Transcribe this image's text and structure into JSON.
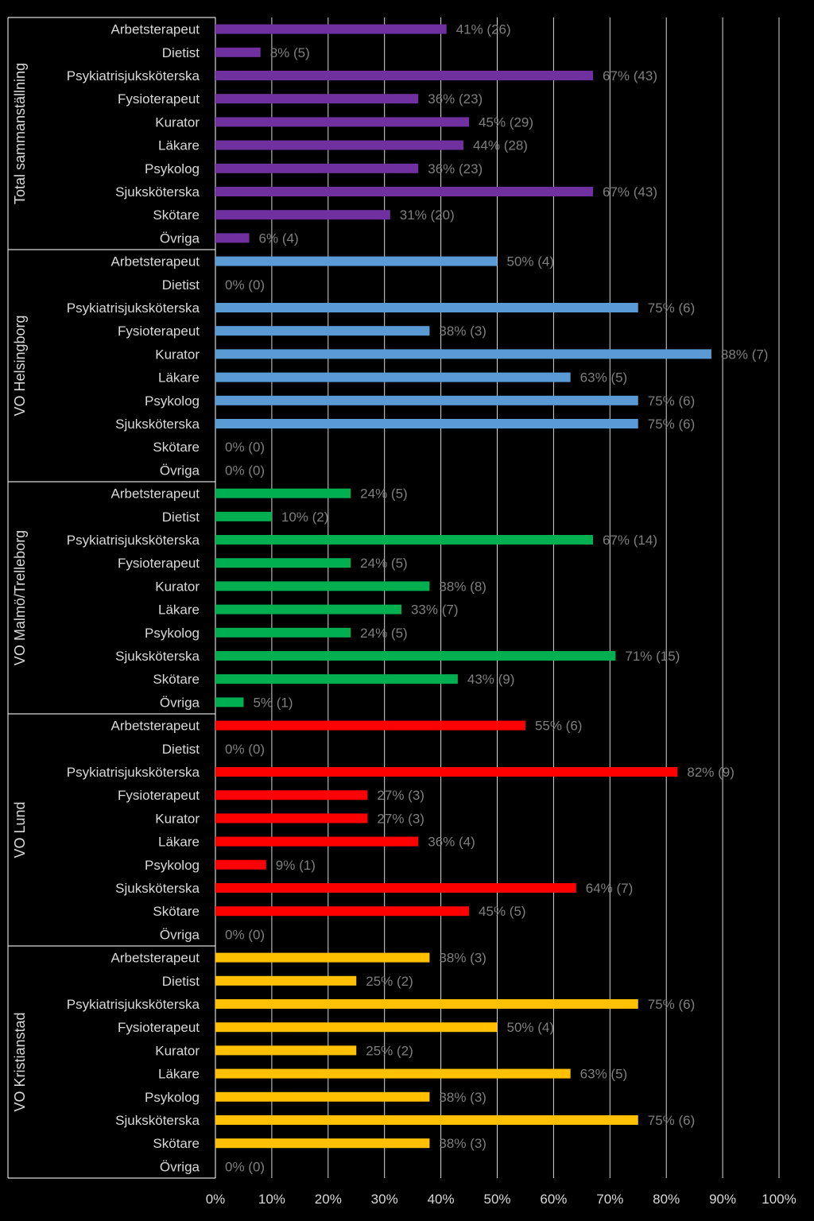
{
  "chart_data": {
    "type": "bar",
    "orientation": "horizontal",
    "xlim": [
      0,
      100
    ],
    "x_ticks": [
      "0%",
      "10%",
      "20%",
      "30%",
      "40%",
      "50%",
      "60%",
      "70%",
      "80%",
      "90%",
      "100%"
    ],
    "grid": true,
    "categories": [
      "Arbetsterapeut",
      "Dietist",
      "Psykiatrisjuksköterska",
      "Fysioterapeut",
      "Kurator",
      "Läkare",
      "Psykolog",
      "Sjuksköterska",
      "Skötare",
      "Övriga"
    ],
    "groups": [
      {
        "name": "Total sammanställning",
        "color": "#7030a0",
        "values": [
          41,
          8,
          67,
          36,
          45,
          44,
          36,
          67,
          31,
          6
        ],
        "labels": [
          "41% (26)",
          "8% (5)",
          "67% (43)",
          "36% (23)",
          "45% (29)",
          "44% (28)",
          "36% (23)",
          "67% (43)",
          "31% (20)",
          "6% (4)"
        ]
      },
      {
        "name": "VO Helsingborg",
        "color": "#5b9bd5",
        "values": [
          50,
          0,
          75,
          38,
          88,
          63,
          75,
          75,
          0,
          0
        ],
        "labels": [
          "50% (4)",
          "0% (0)",
          "75% (6)",
          "38% (3)",
          "88% (7)",
          "63% (5)",
          "75% (6)",
          "75% (6)",
          "0% (0)",
          "0% (0)"
        ]
      },
      {
        "name": "VO Malmö/Trelleborg",
        "color": "#00b050",
        "values": [
          24,
          10,
          67,
          24,
          38,
          33,
          24,
          71,
          43,
          5
        ],
        "labels": [
          "24% (5)",
          "10% (2)",
          "67% (14)",
          "24% (5)",
          "38% (8)",
          "33% (7)",
          "24% (5)",
          "71% (15)",
          "43% (9)",
          "5% (1)"
        ]
      },
      {
        "name": "VO Lund",
        "color": "#ff0000",
        "values": [
          55,
          0,
          82,
          27,
          27,
          36,
          9,
          64,
          45,
          0
        ],
        "labels": [
          "55% (6)",
          "0% (0)",
          "82% (9)",
          "27% (3)",
          "27% (3)",
          "36% (4)",
          "9% (1)",
          "64% (7)",
          "45% (5)",
          "0% (0)"
        ]
      },
      {
        "name": "VO Kristianstad",
        "color": "#ffc000",
        "values": [
          38,
          25,
          75,
          50,
          25,
          63,
          38,
          75,
          38,
          0
        ],
        "labels": [
          "38% (3)",
          "25% (2)",
          "75% (6)",
          "50% (4)",
          "25% (2)",
          "63% (5)",
          "38% (3)",
          "75% (6)",
          "38% (3)",
          "0% (0)"
        ]
      }
    ]
  }
}
